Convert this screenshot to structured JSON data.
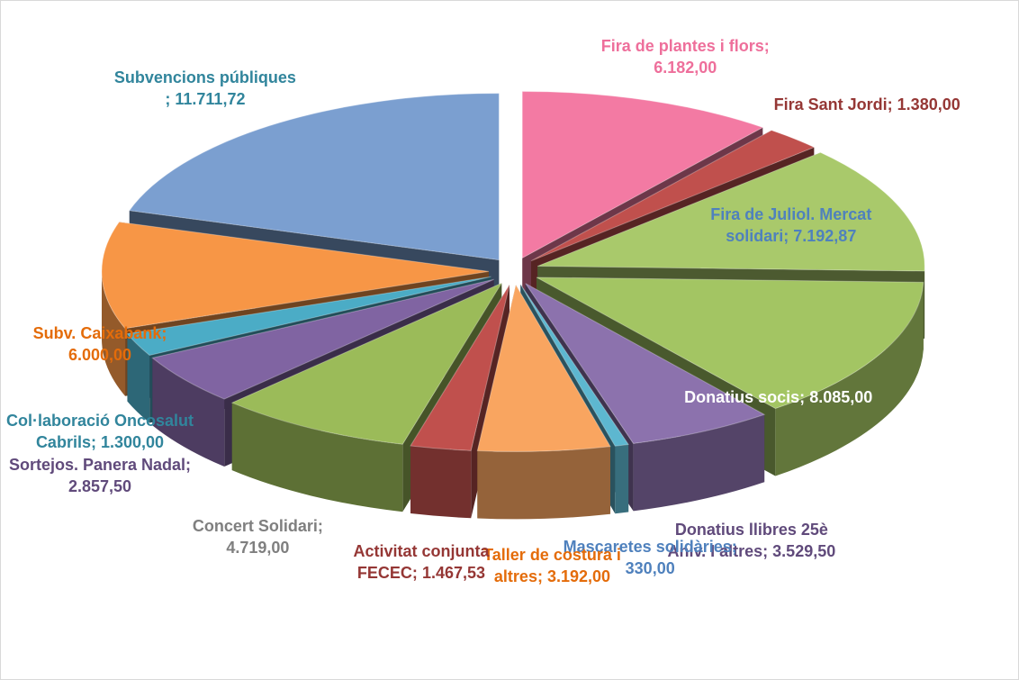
{
  "chart_data": {
    "type": "pie",
    "categories": [
      "Fira de plantes i flors;",
      "Fira Sant Jordi;",
      "Fira de Juliol. Mercat solidari;",
      "Donatius socis;",
      "Donatius llibres 25è Aniv. I altres;",
      "Mascaretes solidàries;",
      "Taller de costura i altres;",
      "Activitat conjunta FECEC;",
      "Concert Solidari;",
      "Sortejos. Panera Nadal;",
      "Col·laboració Oncosalut Cabrils;",
      "Subv. Caixabank;",
      "Subvencions públiques ;"
    ],
    "values": [
      6182,
      1380,
      7192.87,
      8085,
      3529.5,
      330,
      3192,
      1467.53,
      4719,
      2857.5,
      1300,
      6000,
      11711.72
    ],
    "value_labels": [
      "6.182,00",
      "1.380,00",
      "7.192,87",
      "8.085,00",
      "3.529,50",
      "330,00",
      "3.192,00",
      "1.467,53",
      "4.719,00",
      "2.857,50",
      "1.300,00",
      "6.000,00",
      "11.711,72"
    ],
    "colors": [
      "#f37aa3",
      "#c0504d",
      "#a9c96b",
      "#a3c563",
      "#8c72ad",
      "#5db7d0",
      "#f9a560",
      "#c0504d",
      "#9bbb59",
      "#8064a2",
      "#4bacc6",
      "#f79646",
      "#7b9fd0"
    ],
    "label_colors": [
      "#ee6f9b",
      "#953735",
      "#4f81bd",
      "#ffffff",
      "#604a7b",
      "#4f81bd",
      "#e46c0a",
      "#953735",
      "#7f7f7f",
      "#604a7b",
      "#31859c",
      "#e46c0a",
      "#31859c"
    ]
  }
}
